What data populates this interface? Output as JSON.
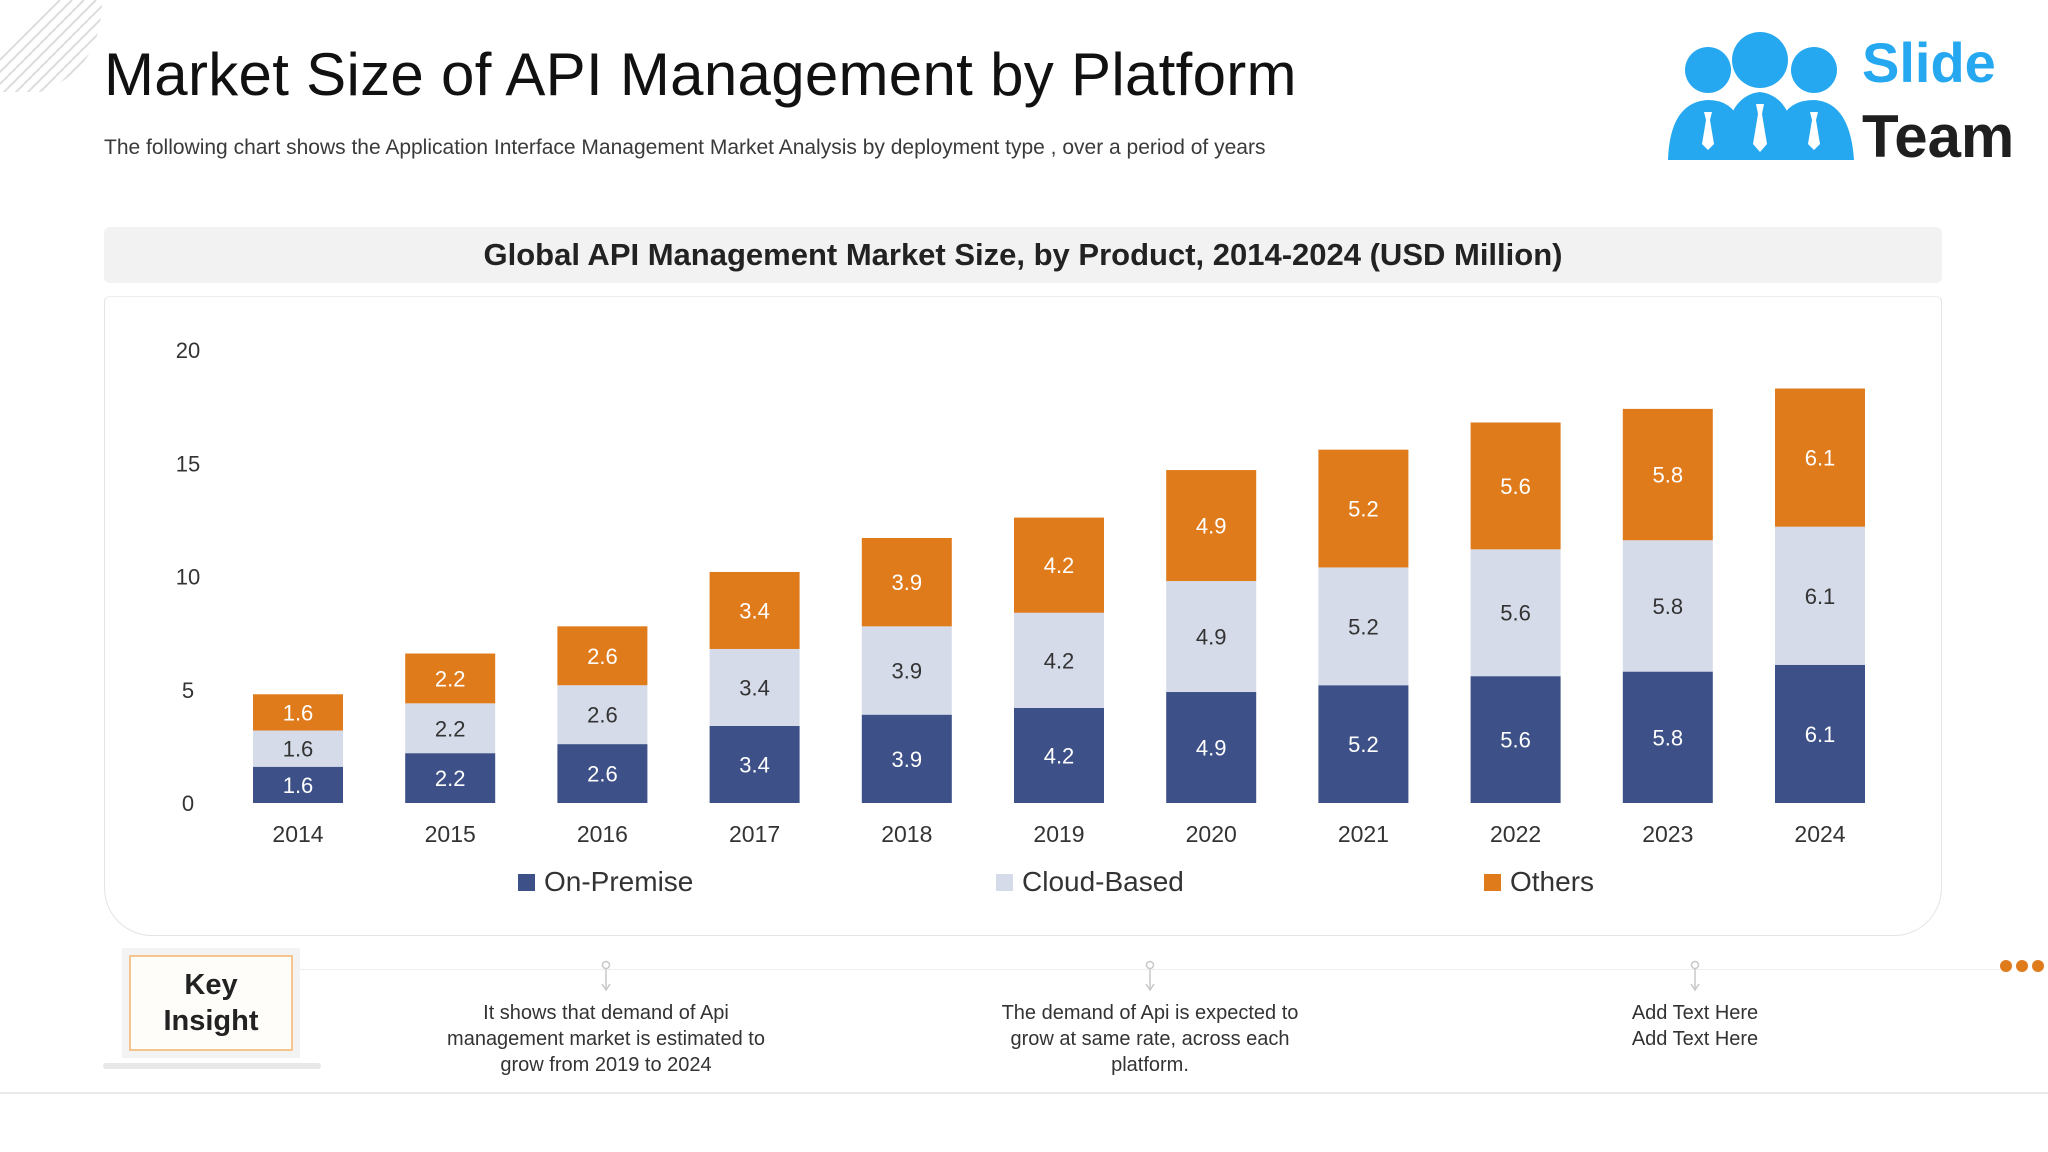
{
  "header": {
    "title": "Market Size of API Management by Platform",
    "subtitle": "The following chart shows the Application Interface Management Market Analysis by deployment type , over a period of years"
  },
  "logo": {
    "word1": "Slide",
    "word2": "Team",
    "brand_color": "#25a8f0"
  },
  "chart_data": {
    "type": "bar",
    "stacked": true,
    "title": "Global API Management Market Size, by Product, 2014-2024 (USD Million)",
    "categories": [
      "2014",
      "2015",
      "2016",
      "2017",
      "2018",
      "2019",
      "2020",
      "2021",
      "2022",
      "2023",
      "2024"
    ],
    "series": [
      {
        "name": "On-Premise",
        "color": "#3d5087",
        "values": [
          1.6,
          2.2,
          2.6,
          3.4,
          3.9,
          4.2,
          4.9,
          5.2,
          5.6,
          5.8,
          6.1
        ]
      },
      {
        "name": "Cloud-Based",
        "color": "#d5dbe9",
        "values": [
          1.6,
          2.2,
          2.6,
          3.4,
          3.9,
          4.2,
          4.9,
          5.2,
          5.6,
          5.8,
          6.1
        ]
      },
      {
        "name": "Others",
        "color": "#e07b1c",
        "values": [
          1.6,
          2.2,
          2.6,
          3.4,
          3.9,
          4.2,
          4.9,
          5.2,
          5.6,
          5.8,
          6.1
        ]
      }
    ],
    "ylim": [
      0,
      20
    ],
    "yticks": [
      "0",
      "5",
      "10",
      "15",
      "20"
    ],
    "grid": false,
    "legend_position": "bottom",
    "xlabel": "",
    "ylabel": ""
  },
  "insight_panel": {
    "label": "Key Insight",
    "accent_color": "#e07b1c",
    "items": [
      {
        "text": "It shows that demand of Api management market is estimated to grow from 2019 to 2024"
      },
      {
        "text": "The demand of Api is expected to grow at same rate, across each platform."
      },
      {
        "text": "Add Text Here Add Text Here"
      }
    ]
  }
}
